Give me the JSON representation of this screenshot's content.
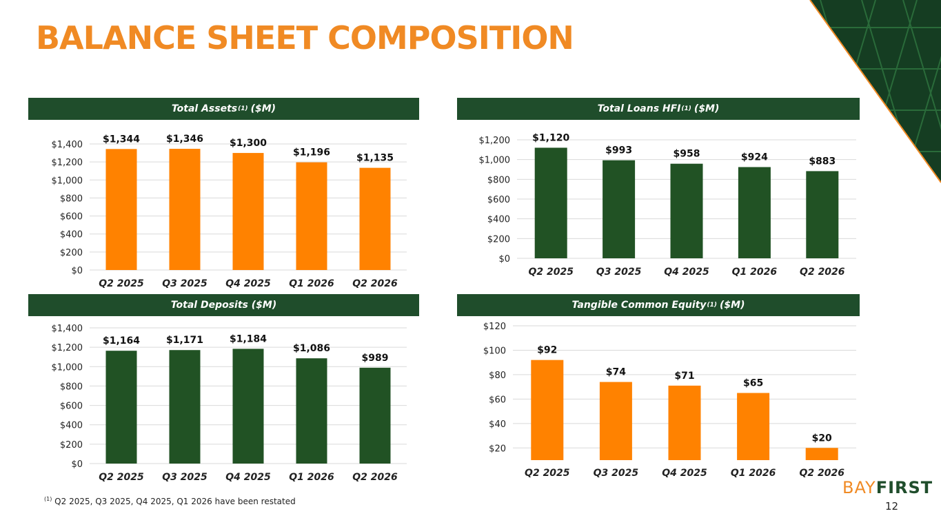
{
  "page": {
    "title": "BALANCE SHEET COMPOSITION",
    "page_number": "12"
  },
  "footnote": {
    "marker": "(1)",
    "text": "Q2 2025, Q3 2025, Q4 2025, Q1 2026 have been restated"
  },
  "logo": {
    "part1": "BAY",
    "part2": "FIRST"
  },
  "colors": {
    "orange": "#ff8200",
    "green": "#215224",
    "brand_orange": "#f08a24",
    "header_green": "#1f4d2b"
  },
  "panels": [
    {
      "id": "assets",
      "title_main": "Total Assets",
      "title_sup": "(1)",
      "title_unit": "($M)"
    },
    {
      "id": "loans",
      "title_main": "Total Loans HFI",
      "title_sup": "(1)",
      "title_unit": "($M)"
    },
    {
      "id": "deposits",
      "title_main": "Total Deposits ($M)",
      "title_sup": "",
      "title_unit": ""
    },
    {
      "id": "tce",
      "title_main": "Tangible Common Equity",
      "title_sup": "(1)",
      "title_unit": "($M)"
    }
  ],
  "chart_data": [
    {
      "type": "bar",
      "title": "Total Assets(1) ($M)",
      "categories": [
        "Q2 2025",
        "Q3 2025",
        "Q4 2025",
        "Q1 2026",
        "Q2 2026"
      ],
      "values": [
        1344,
        1346,
        1300,
        1196,
        1135
      ],
      "labels": [
        "$1,344",
        "$1,346",
        "$1,300",
        "$1,196",
        "$1,135"
      ],
      "ylim": [
        0,
        1400
      ],
      "yticks": [
        0,
        200,
        400,
        600,
        800,
        1000,
        1200,
        1400
      ],
      "ytick_labels": [
        "$0",
        "$200",
        "$400",
        "$600",
        "$800",
        "$1,000",
        "$1,200",
        "$1,400"
      ],
      "color": "#ff8200",
      "grid": true
    },
    {
      "type": "bar",
      "title": "Total Loans HFI(1) ($M)",
      "categories": [
        "Q2 2025",
        "Q3 2025",
        "Q4 2025",
        "Q1 2026",
        "Q2 2026"
      ],
      "values": [
        1120,
        993,
        958,
        924,
        883
      ],
      "labels": [
        "$1,120",
        "$993",
        "$958",
        "$924",
        "$883"
      ],
      "ylim": [
        0,
        1200
      ],
      "yticks": [
        0,
        200,
        400,
        600,
        800,
        1000,
        1200
      ],
      "ytick_labels": [
        "$0",
        "$200",
        "$400",
        "$600",
        "$800",
        "$1,000",
        "$1,200"
      ],
      "color": "#215224",
      "grid": true
    },
    {
      "type": "bar",
      "title": "Total Deposits ($M)",
      "categories": [
        "Q2 2025",
        "Q3 2025",
        "Q4 2025",
        "Q1 2026",
        "Q2 2026"
      ],
      "values": [
        1164,
        1171,
        1184,
        1086,
        989
      ],
      "labels": [
        "$1,164",
        "$1,171",
        "$1,184",
        "$1,086",
        "$989"
      ],
      "ylim": [
        0,
        1400
      ],
      "yticks": [
        0,
        200,
        400,
        600,
        800,
        1000,
        1200,
        1400
      ],
      "ytick_labels": [
        "$0",
        "$200",
        "$400",
        "$600",
        "$800",
        "$1,000",
        "$1,200",
        "$1,400"
      ],
      "color": "#215224",
      "grid": true
    },
    {
      "type": "bar",
      "title": "Tangible Common Equity(1) ($M)",
      "categories": [
        "Q2 2025",
        "Q3 2025",
        "Q4 2025",
        "Q1 2026",
        "Q2 2026"
      ],
      "values": [
        92,
        74,
        71,
        65,
        20
      ],
      "labels": [
        "$92",
        "$74",
        "$71",
        "$65",
        "$20"
      ],
      "ylim": [
        10,
        120
      ],
      "yticks": [
        20,
        40,
        60,
        80,
        100,
        120
      ],
      "ytick_labels": [
        "$20",
        "$40",
        "$60",
        "$80",
        "$100",
        "$120"
      ],
      "color": "#ff8200",
      "grid": true
    }
  ]
}
